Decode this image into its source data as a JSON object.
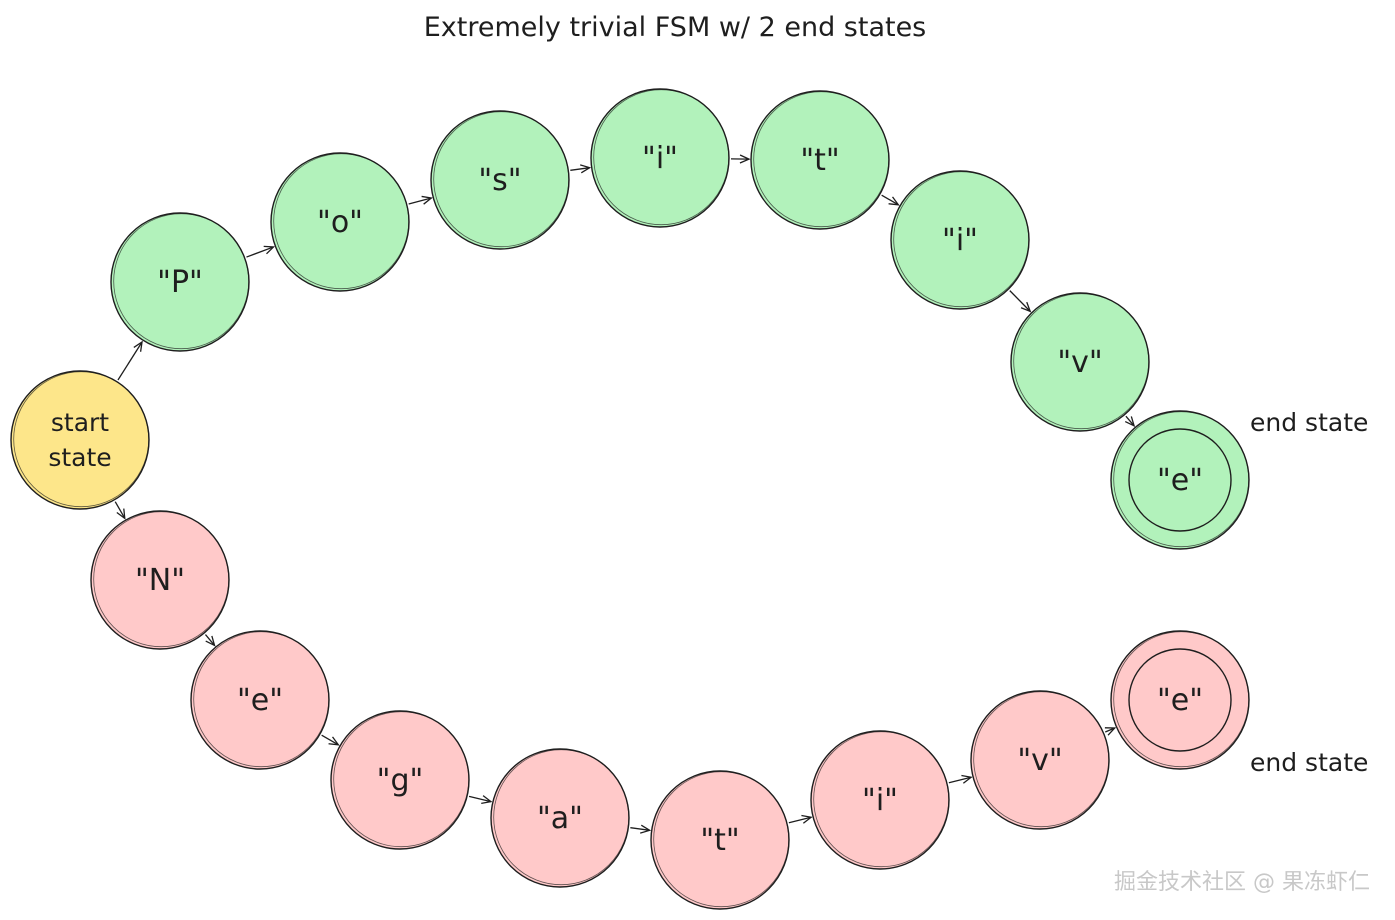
{
  "title": "Extremely trivial FSM w/ 2 end states",
  "colors": {
    "start": "#fde68a",
    "accept_path": "#b2f2bb",
    "reject_path": "#ffc9c9",
    "stroke": "#1e1e1e"
  },
  "start_state": {
    "line1": "start",
    "line2": "state"
  },
  "nodes": [
    {
      "id": "start",
      "kind": "start",
      "label": ""
    },
    {
      "id": "g1",
      "kind": "green",
      "label": "\"P\""
    },
    {
      "id": "g2",
      "kind": "green",
      "label": "\"o\""
    },
    {
      "id": "g3",
      "kind": "green",
      "label": "\"s\""
    },
    {
      "id": "g4",
      "kind": "green",
      "label": "\"i\""
    },
    {
      "id": "g5",
      "kind": "green",
      "label": "\"t\""
    },
    {
      "id": "g6",
      "kind": "green",
      "label": "\"i\""
    },
    {
      "id": "g7",
      "kind": "green",
      "label": "\"v\""
    },
    {
      "id": "g8",
      "kind": "green-end",
      "label": "\"e\""
    },
    {
      "id": "r1",
      "kind": "red",
      "label": "\"N\""
    },
    {
      "id": "r2",
      "kind": "red",
      "label": "\"e\""
    },
    {
      "id": "r3",
      "kind": "red",
      "label": "\"g\""
    },
    {
      "id": "r4",
      "kind": "red",
      "label": "\"a\""
    },
    {
      "id": "r5",
      "kind": "red",
      "label": "\"t\""
    },
    {
      "id": "r6",
      "kind": "red",
      "label": "\"i\""
    },
    {
      "id": "r7",
      "kind": "red",
      "label": "\"v\""
    },
    {
      "id": "r8",
      "kind": "red-end",
      "label": "\"e\""
    }
  ],
  "edges": [
    [
      "start",
      "g1"
    ],
    [
      "g1",
      "g2"
    ],
    [
      "g2",
      "g3"
    ],
    [
      "g3",
      "g4"
    ],
    [
      "g4",
      "g5"
    ],
    [
      "g5",
      "g6"
    ],
    [
      "g6",
      "g7"
    ],
    [
      "g7",
      "g8"
    ],
    [
      "start",
      "r1"
    ],
    [
      "r1",
      "r2"
    ],
    [
      "r2",
      "r3"
    ],
    [
      "r3",
      "r4"
    ],
    [
      "r4",
      "r5"
    ],
    [
      "r5",
      "r6"
    ],
    [
      "r6",
      "r7"
    ],
    [
      "r7",
      "r8"
    ]
  ],
  "end_labels": {
    "top": "end state",
    "bottom": "end state"
  },
  "watermark": "掘金技术社区 @ 果冻虾仁"
}
